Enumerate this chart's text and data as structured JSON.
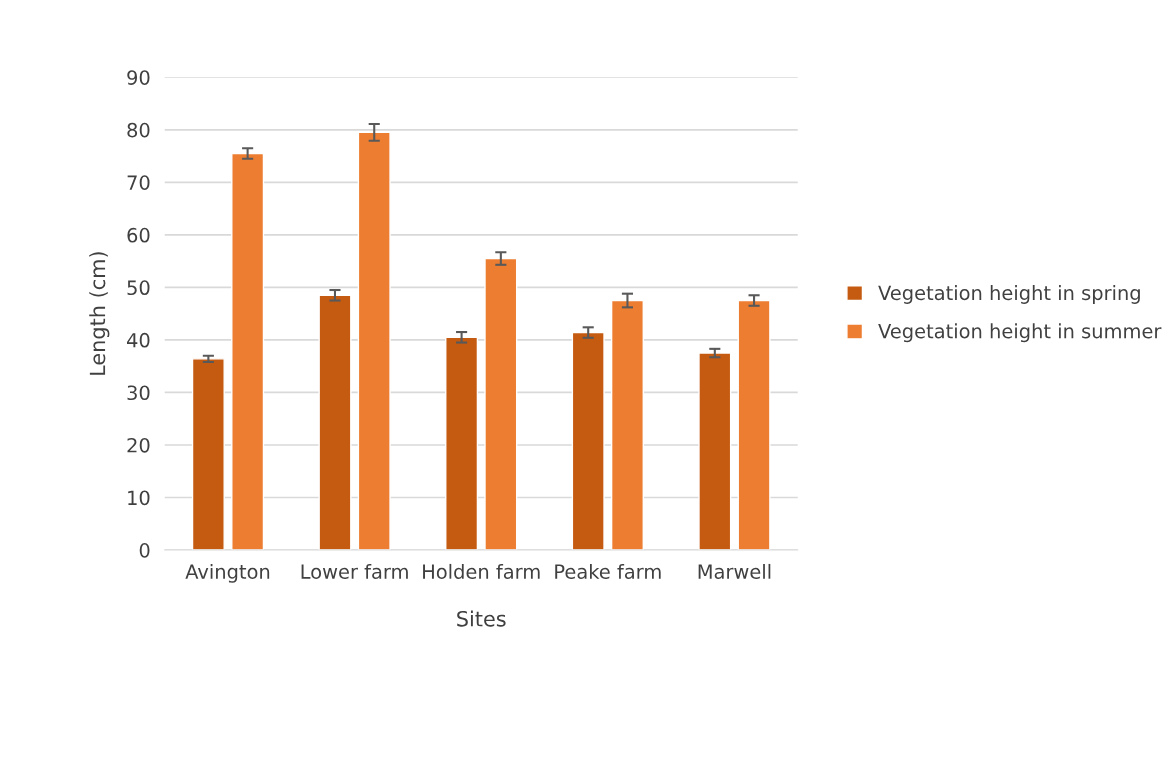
{
  "chart_data": {
    "type": "bar",
    "xlabel": "Sites",
    "ylabel": "Length (cm)",
    "categories": [
      "Avington",
      "Lower farm",
      "Holden farm",
      "Peake farm",
      "Marwell"
    ],
    "series": [
      {
        "name": "Vegetation height in spring",
        "color": "#c55a11",
        "values": [
          36.4,
          48.5,
          40.5,
          41.4,
          37.5
        ],
        "errors": [
          0.6,
          1,
          1,
          1,
          0.8
        ]
      },
      {
        "name": "Vegetation height in summer",
        "color": "#ed7d31",
        "values": [
          75.5,
          79.5,
          55.5,
          47.5,
          47.5
        ],
        "errors": [
          1,
          1.6,
          1.2,
          1.3,
          1
        ]
      }
    ],
    "ylim": [
      0,
      90
    ],
    "yticks": [
      0,
      10,
      20,
      30,
      40,
      50,
      60,
      70,
      80,
      90
    ],
    "grid": "y",
    "legend": "right"
  }
}
